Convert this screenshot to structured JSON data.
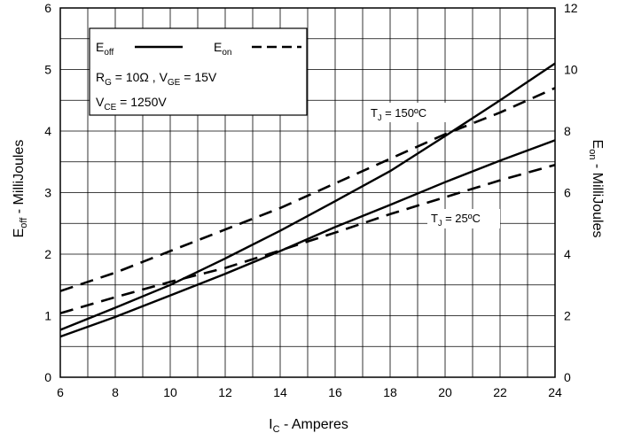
{
  "chart_data": {
    "type": "line",
    "x_label": {
      "main": "I",
      "sub": "C",
      "rest": " - Amperes"
    },
    "y_left_label": {
      "main": "E",
      "sub": "off",
      "rest": " - MilliJoules"
    },
    "y_right_label": {
      "main": "E",
      "sub": "on",
      "rest": " - MilliJoules"
    },
    "xlim": [
      6,
      24
    ],
    "ylim_left": [
      0,
      6
    ],
    "ylim_right": [
      0,
      12
    ],
    "x_ticks": [
      "6",
      "8",
      "10",
      "12",
      "14",
      "16",
      "18",
      "20",
      "22",
      "24"
    ],
    "y_left_ticks": [
      "0",
      "1",
      "2",
      "3",
      "4",
      "5",
      "6"
    ],
    "y_right_ticks": [
      "0",
      "2",
      "4",
      "6",
      "8",
      "10",
      "12"
    ],
    "grid": true,
    "series": [
      {
        "id": "eoff-150",
        "axis": "left",
        "style": "solid",
        "x": [
          6,
          8,
          10,
          12,
          14,
          16,
          18,
          20,
          22,
          24
        ],
        "y": [
          0.77,
          1.13,
          1.5,
          1.93,
          2.38,
          2.86,
          3.35,
          3.92,
          4.5,
          5.1
        ]
      },
      {
        "id": "eoff-25",
        "axis": "left",
        "style": "solid",
        "x": [
          6,
          8,
          10,
          12,
          14,
          16,
          18,
          20,
          22,
          24
        ],
        "y": [
          0.66,
          0.98,
          1.33,
          1.68,
          2.05,
          2.44,
          2.8,
          3.17,
          3.52,
          3.85
        ]
      },
      {
        "id": "eon-150",
        "axis": "right",
        "style": "dashed",
        "x": [
          6,
          8,
          10,
          12,
          14,
          16,
          18,
          20,
          22,
          24
        ],
        "y": [
          2.8,
          3.4,
          4.1,
          4.8,
          5.5,
          6.3,
          7.1,
          7.9,
          8.6,
          9.4
        ]
      },
      {
        "id": "eon-25",
        "axis": "right",
        "style": "dashed",
        "x": [
          6,
          8,
          10,
          12,
          14,
          16,
          18,
          20,
          22,
          24
        ],
        "y": [
          2.08,
          2.6,
          3.1,
          3.55,
          4.12,
          4.7,
          5.3,
          5.85,
          6.4,
          6.9
        ]
      }
    ],
    "legend": {
      "placement": "top-left",
      "eoff": {
        "main": "E",
        "sub": "off"
      },
      "eon": {
        "main": "E",
        "sub": "on"
      },
      "line2": {
        "r_main": "R",
        "r_sub": "G",
        "r_rest": " = 10Ω ,  V",
        "v_sub": "GE",
        "v_rest": " = 15V"
      },
      "line3": {
        "main": "V",
        "sub": "CE",
        "rest": " = 1250V"
      }
    },
    "annotations": [
      {
        "id": "tj-150",
        "main": "T",
        "sub": "J",
        "rest": " = 150ºC"
      },
      {
        "id": "tj-25",
        "main": "T",
        "sub": "J",
        "rest": " = 25ºC"
      }
    ]
  }
}
